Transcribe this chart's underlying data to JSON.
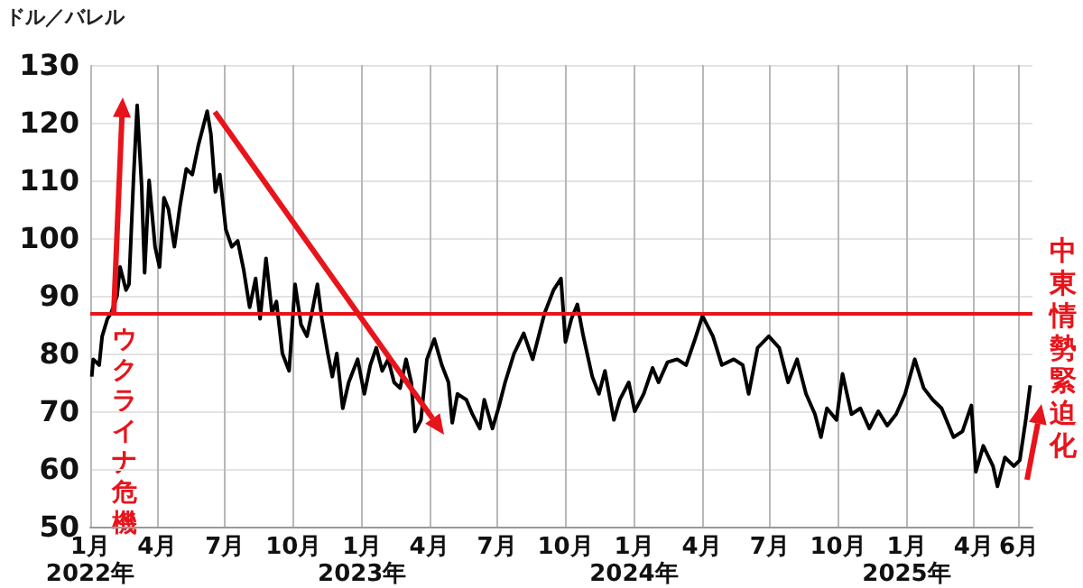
{
  "chart_data": {
    "type": "line",
    "ylabel": "ドル／バレル",
    "x": [
      "2022-01-03",
      "2022-01-05",
      "2022-01-13",
      "2022-01-17",
      "2022-01-24",
      "2022-01-29",
      "2022-02-06",
      "2022-02-10",
      "2022-02-18",
      "2022-02-22",
      "2022-02-28",
      "2022-03-05",
      "2022-03-11",
      "2022-03-15",
      "2022-03-21",
      "2022-03-29",
      "2022-04-04",
      "2022-04-10",
      "2022-04-16",
      "2022-04-24",
      "2022-05-02",
      "2022-05-10",
      "2022-05-18",
      "2022-05-26",
      "2022-06-07",
      "2022-06-12",
      "2022-06-18",
      "2022-06-24",
      "2022-07-02",
      "2022-07-10",
      "2022-07-18",
      "2022-07-26",
      "2022-08-03",
      "2022-08-11",
      "2022-08-17",
      "2022-08-25",
      "2022-09-02",
      "2022-09-08",
      "2022-09-16",
      "2022-09-25",
      "2022-10-03",
      "2022-10-11",
      "2022-10-19",
      "2022-10-27",
      "2022-11-02",
      "2022-11-08",
      "2022-11-16",
      "2022-11-22",
      "2022-11-28",
      "2022-12-06",
      "2022-12-14",
      "2022-12-26",
      "2023-01-04",
      "2023-01-12",
      "2023-01-20",
      "2023-01-28",
      "2023-02-05",
      "2023-02-13",
      "2023-02-21",
      "2023-03-01",
      "2023-03-08",
      "2023-03-13",
      "2023-03-21",
      "2023-03-29",
      "2023-04-08",
      "2023-04-18",
      "2023-04-27",
      "2023-05-02",
      "2023-05-09",
      "2023-05-21",
      "2023-05-29",
      "2023-06-08",
      "2023-06-14",
      "2023-06-25",
      "2023-07-03",
      "2023-07-12",
      "2023-07-24",
      "2023-08-06",
      "2023-08-18",
      "2023-08-30",
      "2023-09-03",
      "2023-09-15",
      "2023-09-25",
      "2023-10-01",
      "2023-10-09",
      "2023-10-17",
      "2023-10-25",
      "2023-11-06",
      "2023-11-15",
      "2023-11-23",
      "2023-12-05",
      "2023-12-13",
      "2023-12-25",
      "2024-01-02",
      "2024-01-14",
      "2024-01-26",
      "2024-02-03",
      "2024-02-15",
      "2024-02-28",
      "2024-03-11",
      "2024-03-23",
      "2024-04-02",
      "2024-04-16",
      "2024-04-28",
      "2024-05-14",
      "2024-05-26",
      "2024-06-03",
      "2024-06-15",
      "2024-06-30",
      "2024-07-14",
      "2024-07-26",
      "2024-08-07",
      "2024-08-19",
      "2024-08-31",
      "2024-09-08",
      "2024-09-16",
      "2024-09-29",
      "2024-10-07",
      "2024-10-19",
      "2024-10-31",
      "2024-11-12",
      "2024-11-24",
      "2024-12-06",
      "2024-12-18",
      "2024-12-30",
      "2025-01-12",
      "2025-01-24",
      "2025-02-05",
      "2025-02-17",
      "2025-03-05",
      "2025-03-17",
      "2025-03-29",
      "2025-04-04",
      "2025-04-14",
      "2025-04-27",
      "2025-05-03",
      "2025-05-13",
      "2025-05-25",
      "2025-06-02",
      "2025-06-10",
      "2025-06-16"
    ],
    "series": [
      {
        "color": "#000000",
        "values": [
          76,
          79,
          78,
          83,
          86,
          87,
          90,
          95,
          91,
          92,
          110,
          123,
          109,
          94,
          110,
          98.5,
          95,
          107,
          105,
          98.5,
          106,
          112,
          111,
          116,
          122,
          118,
          108,
          111,
          101.5,
          98.5,
          99.5,
          94.5,
          88,
          93,
          86,
          96.5,
          87,
          89,
          80,
          77,
          92,
          85,
          83,
          88,
          92,
          86,
          80,
          76,
          80,
          70.5,
          75,
          79,
          73,
          78,
          81,
          77,
          79,
          75,
          74,
          79,
          75,
          66.5,
          68.5,
          79,
          82.5,
          78,
          75,
          68,
          73,
          72,
          69.5,
          67,
          72,
          67,
          70.5,
          75,
          80,
          83.5,
          79,
          85,
          87,
          91,
          93,
          82,
          86,
          88.5,
          83,
          76,
          73,
          77,
          68.5,
          72,
          75,
          70,
          73,
          77.5,
          75,
          78.5,
          79,
          78,
          82.5,
          86.5,
          83,
          78,
          79,
          78,
          73,
          81,
          83,
          81,
          75,
          79,
          73,
          69.5,
          65.5,
          70.5,
          68.5,
          76.5,
          69.5,
          70.5,
          67,
          70,
          67.5,
          69.5,
          73,
          79,
          74,
          72,
          70.5,
          65.5,
          66.5,
          71,
          59.5,
          64,
          60.5,
          57,
          62,
          60.5,
          61.5,
          68.5,
          74.5
        ]
      }
    ],
    "xlim": [
      "2022-01-01",
      "2025-06-19"
    ],
    "xticks": [
      {
        "value": "2022-01-01",
        "label": "1月\n2022年"
      },
      {
        "value": "2022-04-01",
        "label": "4月"
      },
      {
        "value": "2022-07-01",
        "label": "7月"
      },
      {
        "value": "2022-10-01",
        "label": "10月"
      },
      {
        "value": "2023-01-01",
        "label": "1月\n2023年"
      },
      {
        "value": "2023-04-01",
        "label": "4月"
      },
      {
        "value": "2023-07-01",
        "label": "7月"
      },
      {
        "value": "2023-10-01",
        "label": "10月"
      },
      {
        "value": "2024-01-01",
        "label": "1月\n2024年"
      },
      {
        "value": "2024-04-01",
        "label": "4月"
      },
      {
        "value": "2024-07-01",
        "label": "7月"
      },
      {
        "value": "2024-10-01",
        "label": "10月"
      },
      {
        "value": "2025-01-01",
        "label": "1月\n2025年"
      },
      {
        "value": "2025-04-01",
        "label": "4月"
      },
      {
        "value": "2025-06-01",
        "label": "6月"
      }
    ],
    "ylim": [
      50,
      130
    ],
    "yticks": [
      50,
      60,
      70,
      80,
      90,
      100,
      110,
      120,
      130
    ],
    "grid": true,
    "ref_lines": [
      {
        "axis": "y",
        "value": 87,
        "color": "#e8141b"
      }
    ],
    "annotations": [
      "ウクライナ危機",
      "中東情勢緊迫化"
    ]
  }
}
